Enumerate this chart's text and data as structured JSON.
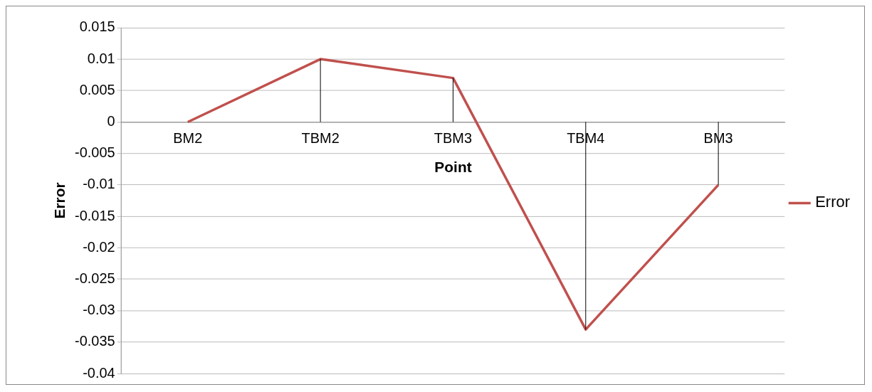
{
  "chart_data": {
    "type": "line",
    "xlabel": "Point",
    "ylabel": "Error",
    "categories": [
      "BM2",
      "TBM2",
      "TBM3",
      "TBM4",
      "BM3"
    ],
    "series": [
      {
        "name": "Error",
        "color": "#c0504d",
        "values": [
          0,
          0.01,
          0.007,
          -0.033,
          -0.01
        ],
        "errors": [
          null,
          [
            0,
            0.01
          ],
          [
            0,
            0.007
          ],
          [
            -0.033,
            0
          ],
          [
            -0.01,
            0
          ]
        ]
      }
    ],
    "ylim": [
      -0.04,
      0.015
    ],
    "yticks": [
      -0.04,
      -0.035,
      -0.03,
      -0.025,
      -0.02,
      -0.015,
      -0.01,
      -0.005,
      0,
      0.005,
      0.01,
      0.015
    ],
    "grid": "y",
    "legend": "right",
    "marker": "none"
  }
}
